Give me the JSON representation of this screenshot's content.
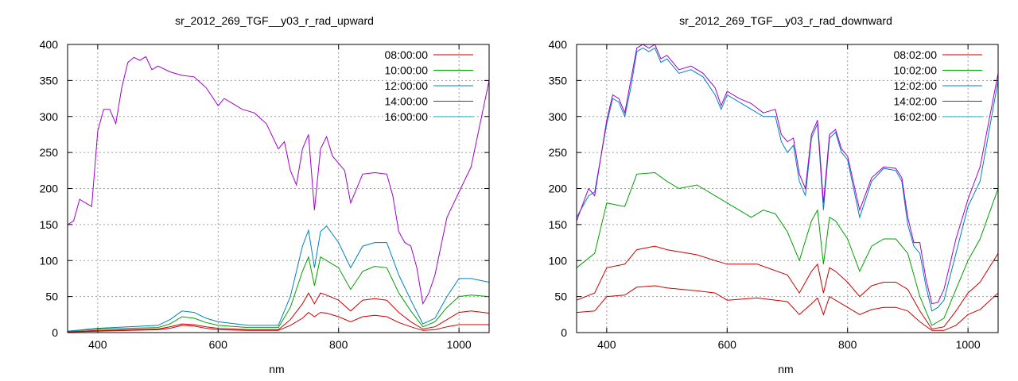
{
  "chart_data": [
    {
      "type": "line",
      "title": "sr_2012_269_TGF__y03_r_rad_upward",
      "xlabel": "nm",
      "ylabel": "",
      "xlim": [
        350,
        1050
      ],
      "ylim": [
        0,
        400
      ],
      "xticks": [
        400,
        600,
        800,
        1000
      ],
      "yticks": [
        0,
        50,
        100,
        150,
        200,
        250,
        300,
        350,
        400
      ],
      "grid": true,
      "legend_position": "top-right",
      "series": [
        {
          "name": "08:00:00",
          "color": "#cc0000",
          "x": [
            350,
            400,
            450,
            500,
            520,
            540,
            560,
            580,
            600,
            650,
            700,
            720,
            740,
            750,
            760,
            770,
            780,
            800,
            820,
            840,
            860,
            880,
            900,
            920,
            940,
            960,
            980,
            1000,
            1020,
            1050
          ],
          "y": [
            1,
            2,
            3,
            4,
            6,
            10,
            9,
            6,
            4,
            3,
            3,
            10,
            20,
            28,
            22,
            28,
            27,
            22,
            15,
            22,
            24,
            22,
            14,
            8,
            3,
            4,
            8,
            11,
            11,
            11
          ]
        },
        {
          "name": "08:00:00",
          "color": "#cc0000",
          "x": [
            350,
            400,
            450,
            500,
            520,
            540,
            560,
            580,
            600,
            650,
            700,
            720,
            740,
            750,
            760,
            770,
            780,
            800,
            820,
            840,
            860,
            880,
            900,
            920,
            940,
            960,
            980,
            1000,
            1020,
            1050
          ],
          "y": [
            1,
            3,
            4,
            5,
            8,
            12,
            11,
            8,
            6,
            4,
            4,
            18,
            40,
            55,
            40,
            55,
            52,
            45,
            30,
            45,
            47,
            45,
            28,
            15,
            5,
            8,
            18,
            28,
            30,
            27
          ]
        },
        {
          "name": "10:00:00",
          "color": "#00a000",
          "x": [
            350,
            400,
            450,
            500,
            520,
            540,
            560,
            580,
            600,
            650,
            700,
            720,
            740,
            750,
            760,
            770,
            780,
            800,
            820,
            840,
            860,
            880,
            900,
            920,
            940,
            960,
            980,
            1000,
            1020,
            1050
          ],
          "y": [
            2,
            5,
            6,
            7,
            12,
            22,
            20,
            14,
            10,
            7,
            7,
            35,
            85,
            105,
            65,
            105,
            100,
            90,
            60,
            85,
            92,
            90,
            55,
            30,
            8,
            15,
            35,
            50,
            52,
            50
          ]
        },
        {
          "name": "12:00:00",
          "color": "#0080c0",
          "x": [
            350,
            400,
            450,
            500,
            520,
            540,
            560,
            580,
            600,
            650,
            700,
            720,
            740,
            750,
            760,
            770,
            780,
            800,
            820,
            840,
            860,
            880,
            900,
            920,
            940,
            960,
            980,
            1000,
            1020,
            1050
          ],
          "y": [
            2,
            6,
            8,
            10,
            18,
            30,
            28,
            20,
            15,
            10,
            10,
            50,
            120,
            142,
            90,
            140,
            148,
            125,
            90,
            120,
            125,
            125,
            80,
            45,
            12,
            20,
            50,
            75,
            75,
            70
          ]
        },
        {
          "name": "14:00:00",
          "color": "#a000d0",
          "x": [
            350,
            360,
            370,
            380,
            390,
            400,
            410,
            420,
            430,
            440,
            450,
            460,
            470,
            480,
            490,
            500,
            520,
            540,
            560,
            580,
            600,
            610,
            620,
            640,
            660,
            680,
            700,
            710,
            720,
            730,
            740,
            750,
            760,
            770,
            780,
            790,
            800,
            810,
            820,
            840,
            860,
            880,
            890,
            900,
            910,
            920,
            930,
            940,
            950,
            960,
            980,
            1000,
            1020,
            1050
          ],
          "y": [
            150,
            155,
            185,
            180,
            175,
            280,
            310,
            310,
            290,
            340,
            375,
            382,
            378,
            383,
            365,
            370,
            362,
            357,
            355,
            340,
            315,
            325,
            320,
            310,
            305,
            290,
            255,
            265,
            225,
            205,
            255,
            275,
            170,
            255,
            272,
            245,
            235,
            225,
            180,
            220,
            222,
            220,
            190,
            140,
            125,
            120,
            90,
            40,
            55,
            80,
            160,
            195,
            230,
            350
          ]
        },
        {
          "name": "16:00:00",
          "color": "#00c0c0",
          "x": [],
          "y": []
        }
      ]
    },
    {
      "type": "line",
      "title": "sr_2012_269_TGF__y03_r_rad_downward",
      "xlabel": "nm",
      "ylabel": "",
      "xlim": [
        350,
        1050
      ],
      "ylim": [
        0,
        400
      ],
      "xticks": [
        400,
        600,
        800,
        1000
      ],
      "yticks": [
        0,
        50,
        100,
        150,
        200,
        250,
        300,
        350,
        400
      ],
      "grid": true,
      "legend_position": "top-right",
      "series": [
        {
          "name": "08:02:00",
          "color": "#cc0000",
          "x": [
            350,
            380,
            400,
            430,
            450,
            480,
            500,
            550,
            580,
            600,
            650,
            700,
            720,
            740,
            750,
            760,
            770,
            780,
            800,
            820,
            840,
            860,
            880,
            900,
            920,
            940,
            960,
            980,
            1000,
            1020,
            1050
          ],
          "y": [
            28,
            30,
            50,
            52,
            63,
            65,
            62,
            58,
            55,
            45,
            48,
            43,
            25,
            40,
            48,
            25,
            50,
            45,
            35,
            25,
            32,
            35,
            35,
            30,
            15,
            3,
            3,
            10,
            25,
            32,
            55
          ]
        },
        {
          "name": "08:02:00",
          "color": "#cc0000",
          "x": [
            350,
            380,
            400,
            430,
            450,
            480,
            500,
            550,
            580,
            600,
            650,
            700,
            720,
            740,
            750,
            760,
            770,
            780,
            800,
            820,
            840,
            860,
            880,
            900,
            920,
            940,
            960,
            980,
            1000,
            1020,
            1050
          ],
          "y": [
            45,
            55,
            90,
            95,
            115,
            120,
            115,
            108,
            100,
            95,
            95,
            80,
            55,
            85,
            95,
            55,
            90,
            85,
            70,
            50,
            65,
            70,
            70,
            60,
            30,
            5,
            8,
            30,
            55,
            70,
            110
          ]
        },
        {
          "name": "10:02:00",
          "color": "#00a000",
          "x": [
            350,
            380,
            400,
            430,
            450,
            480,
            500,
            520,
            550,
            580,
            600,
            620,
            640,
            660,
            680,
            700,
            720,
            740,
            750,
            760,
            770,
            780,
            800,
            820,
            840,
            860,
            880,
            900,
            920,
            940,
            960,
            980,
            1000,
            1020,
            1050
          ],
          "y": [
            90,
            110,
            180,
            175,
            220,
            222,
            210,
            200,
            205,
            190,
            180,
            170,
            160,
            170,
            165,
            140,
            100,
            155,
            170,
            95,
            160,
            155,
            130,
            85,
            120,
            130,
            130,
            110,
            50,
            10,
            20,
            60,
            100,
            130,
            200
          ]
        },
        {
          "name": "12:02:00",
          "color": "#0080c0",
          "x": [
            350,
            370,
            380,
            400,
            410,
            420,
            430,
            440,
            450,
            460,
            470,
            480,
            490,
            500,
            520,
            540,
            560,
            580,
            590,
            600,
            620,
            640,
            660,
            680,
            690,
            700,
            710,
            720,
            730,
            740,
            750,
            760,
            770,
            780,
            790,
            800,
            820,
            840,
            860,
            880,
            890,
            900,
            910,
            920,
            930,
            940,
            950,
            960,
            980,
            1000,
            1020,
            1050
          ],
          "y": [
            160,
            190,
            195,
            290,
            325,
            320,
            300,
            340,
            390,
            395,
            390,
            395,
            375,
            380,
            360,
            365,
            355,
            330,
            310,
            330,
            320,
            310,
            300,
            300,
            265,
            250,
            260,
            210,
            190,
            270,
            290,
            170,
            270,
            278,
            250,
            240,
            160,
            210,
            228,
            225,
            210,
            150,
            120,
            110,
            65,
            30,
            35,
            45,
            110,
            175,
            210,
            350
          ]
        },
        {
          "name": "14:02:00",
          "color": "#a000d0",
          "x": [
            350,
            370,
            380,
            400,
            410,
            420,
            430,
            440,
            450,
            460,
            470,
            480,
            490,
            500,
            520,
            540,
            560,
            580,
            590,
            600,
            620,
            640,
            660,
            680,
            690,
            700,
            710,
            720,
            730,
            740,
            750,
            760,
            770,
            780,
            790,
            800,
            820,
            840,
            860,
            880,
            890,
            900,
            910,
            920,
            930,
            940,
            950,
            960,
            980,
            1000,
            1020,
            1050
          ],
          "y": [
            155,
            200,
            190,
            295,
            330,
            325,
            305,
            350,
            395,
            400,
            395,
            400,
            380,
            385,
            365,
            370,
            360,
            340,
            315,
            335,
            325,
            318,
            305,
            310,
            275,
            265,
            270,
            220,
            200,
            275,
            295,
            180,
            275,
            282,
            255,
            245,
            170,
            215,
            230,
            228,
            215,
            160,
            125,
            125,
            75,
            40,
            42,
            60,
            130,
            185,
            230,
            360
          ]
        },
        {
          "name": "16:02:00",
          "color": "#00c0c0",
          "x": [],
          "y": []
        }
      ]
    }
  ]
}
